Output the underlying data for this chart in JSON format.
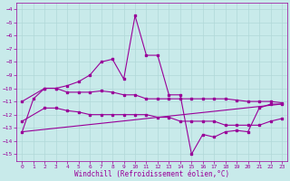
{
  "xlabel": "Windchill (Refroidissement éolien,°C)",
  "bg_color": "#c8eaea",
  "grid_color": "#b0d8d8",
  "line_color": "#990099",
  "ylim": [
    -15.5,
    -3.5
  ],
  "xlim": [
    -0.5,
    23.5
  ],
  "yticks": [
    -15,
    -14,
    -13,
    -12,
    -11,
    -10,
    -9,
    -8,
    -7,
    -6,
    -5,
    -4
  ],
  "xticks": [
    0,
    1,
    2,
    3,
    4,
    5,
    6,
    7,
    8,
    9,
    10,
    11,
    12,
    13,
    14,
    15,
    16,
    17,
    18,
    19,
    20,
    21,
    22,
    23
  ],
  "series1_x": [
    0,
    1,
    2,
    3,
    4,
    5,
    6,
    7,
    8,
    9,
    10,
    11,
    12,
    13,
    14,
    15,
    16,
    17,
    18,
    19,
    20,
    21,
    22,
    23
  ],
  "series1_y": [
    -13.3,
    -10.8,
    -10.0,
    -10.0,
    -9.8,
    -9.5,
    -9.0,
    -8.0,
    -7.8,
    -9.3,
    -4.5,
    -7.5,
    -7.5,
    -10.5,
    -10.5,
    -15.0,
    -13.5,
    -13.7,
    -13.3,
    -13.2,
    -13.3,
    -11.5,
    -11.2,
    -11.2
  ],
  "series2_x": [
    0,
    2,
    3,
    4,
    5,
    6,
    7,
    8,
    9,
    10,
    11,
    12,
    13,
    14,
    15,
    16,
    17,
    18,
    19,
    20,
    21,
    22,
    23
  ],
  "series2_y": [
    -11.0,
    -10.0,
    -10.0,
    -10.3,
    -10.3,
    -10.3,
    -10.2,
    -10.3,
    -10.5,
    -10.5,
    -10.8,
    -10.8,
    -10.8,
    -10.8,
    -10.8,
    -10.8,
    -10.8,
    -10.8,
    -10.9,
    -11.0,
    -11.0,
    -11.0,
    -11.1
  ],
  "series3_x": [
    0,
    2,
    3,
    4,
    5,
    6,
    7,
    8,
    9,
    10,
    11,
    12,
    13,
    14,
    15,
    16,
    17,
    18,
    19,
    20,
    21,
    22,
    23
  ],
  "series3_y": [
    -12.5,
    -11.5,
    -11.5,
    -11.7,
    -11.8,
    -12.0,
    -12.0,
    -12.0,
    -12.0,
    -12.0,
    -12.0,
    -12.2,
    -12.2,
    -12.5,
    -12.5,
    -12.5,
    -12.5,
    -12.8,
    -12.8,
    -12.8,
    -12.8,
    -12.5,
    -12.3
  ],
  "series4_x": [
    0,
    23
  ],
  "series4_y": [
    -13.3,
    -11.2
  ]
}
